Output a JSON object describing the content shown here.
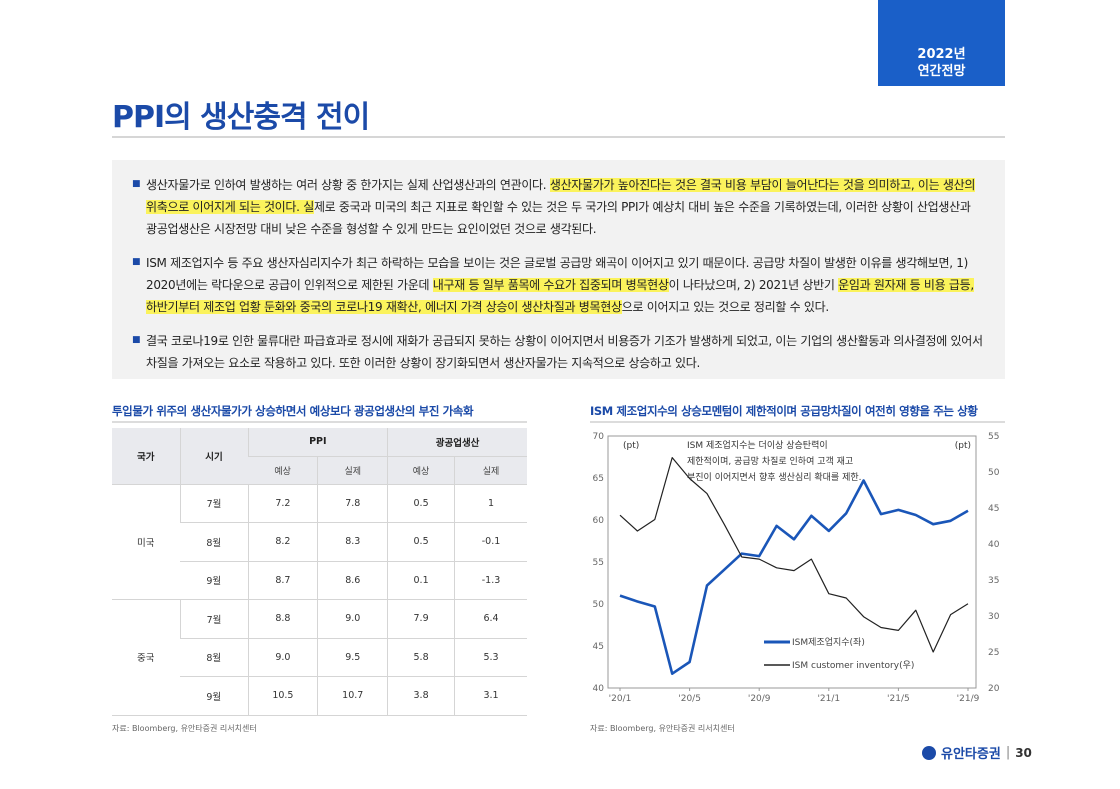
{
  "header": {
    "badge_line1": "2022년",
    "badge_line2": "연간전망",
    "title": "PPI의 생산충격 전이"
  },
  "summary": {
    "bullets": [
      {
        "segments": [
          {
            "text": "생산자물가로 인하여 발생하는 여러 상황 중 한가지는 실제 산업생산과의 연관이다. ",
            "hl": false
          },
          {
            "text": "생산자물가가 높아진다는 것은 결국 비용 부담이 늘어난다는 것을 의미하고, 이는 생산의 위축으로 이어지게 되는 것이다. 실",
            "hl": true
          },
          {
            "text": "제로 중국과 미국의 최근 지표로 확인할 수 있는 것은 두 국가의 PPI가 예상치 대비 높은 수준을 기록하였는데, 이러한 상황이 산업생산과 광공업생산은 시장전망 대비 낮은 수준을 형성할 수 있게 만드는 요인이었던 것으로 생각된다.",
            "hl": false
          }
        ]
      },
      {
        "segments": [
          {
            "text": "ISM 제조업지수 등 주요 생산자심리지수가 최근 하락하는 모습을 보이는 것은 글로벌 공급망 왜곡이 이어지고 있기 때문이다. 공급망 차질이 발생한 이유를 생각해보면, 1) 2020년에는 락다운으로 공급이 인위적으로 제한된 가운데 ",
            "hl": false
          },
          {
            "text": "내구재 등 일부 품목에 수요가 집중되며 병목현상",
            "hl": true
          },
          {
            "text": "이 나타났으며, 2) 2021년 상반기 ",
            "hl": false
          },
          {
            "text": "운임과 원자재 등 비용 급등, 하반기부터 제조업 업황 둔화와 중국의 코로나19 재확산, 에너지 가격 상승이 생산차질과 병목현상",
            "hl": true
          },
          {
            "text": "으로 이어지고 있는 것으로 정리할 수 있다.",
            "hl": false
          }
        ]
      },
      {
        "segments": [
          {
            "text": "결국 코로나19로 인한 물류대란 파급효과로 정시에 재화가 공급되지 못하는 상황이 이어지면서 비용증가 기조가 발생하게 되었고, 이는 기업의 생산활동과 의사결정에 있어서 차질을 가져오는 요소로 작용하고 있다. 또한 이러한 상황이 장기화되면서 생산자물가는 지속적으로 상승하고 있다.",
            "hl": false
          }
        ]
      }
    ]
  },
  "left_panel": {
    "title": "투입물가 위주의 생산자물가가 상승하면서 예상보다 광공업생산의 부진 가속화",
    "source": "자료: Bloomberg, 유안타증권 리서치센터",
    "table": {
      "h_country": "국가",
      "h_period": "시기",
      "h_ppi": "PPI",
      "h_ip": "광공업생산",
      "h_expected": "예상",
      "h_actual": "실제",
      "groups": [
        {
          "country": "미국",
          "rows": [
            {
              "period": "7월",
              "ppi_exp": "7.2",
              "ppi_act": "7.8",
              "ip_exp": "0.5",
              "ip_act": "1"
            },
            {
              "period": "8월",
              "ppi_exp": "8.2",
              "ppi_act": "8.3",
              "ip_exp": "0.5",
              "ip_act": "-0.1"
            },
            {
              "period": "9월",
              "ppi_exp": "8.7",
              "ppi_act": "8.6",
              "ip_exp": "0.1",
              "ip_act": "-1.3"
            }
          ]
        },
        {
          "country": "중국",
          "rows": [
            {
              "period": "7월",
              "ppi_exp": "8.8",
              "ppi_act": "9.0",
              "ip_exp": "7.9",
              "ip_act": "6.4"
            },
            {
              "period": "8월",
              "ppi_exp": "9.0",
              "ppi_act": "9.5",
              "ip_exp": "5.8",
              "ip_act": "5.3"
            },
            {
              "period": "9월",
              "ppi_exp": "10.5",
              "ppi_act": "10.7",
              "ip_exp": "3.8",
              "ip_act": "3.1"
            }
          ]
        }
      ],
      "colors": {
        "above": "#e03030",
        "below": "#2a7ad0"
      }
    }
  },
  "right_panel": {
    "title": "ISM 제조업지수의 상승모멘텀이 제한적이며 공급망차질이 여전히 영향을 주는 상황",
    "source": "자료: Bloomberg, 유안타증권 리서치센터"
  },
  "chart_data": {
    "type": "line",
    "left_unit": "(pt)",
    "right_unit": "(pt)",
    "annotation": [
      "ISM 제조업지수는 더이상 상승탄력이",
      "제한적이며, 공급망 차질로 인하여 고객 재고",
      "부진이 이어지면서 향후 생산심리 확대를 제한."
    ],
    "x_ticks": [
      "'20/1",
      "'20/5",
      "'20/9",
      "'21/1",
      "'21/5",
      "'21/9"
    ],
    "x_dates": [
      "2020-01",
      "2020-02",
      "2020-03",
      "2020-04",
      "2020-05",
      "2020-06",
      "2020-07",
      "2020-08",
      "2020-09",
      "2020-10",
      "2020-11",
      "2020-12",
      "2021-01",
      "2021-02",
      "2021-03",
      "2021-04",
      "2021-05",
      "2021-06",
      "2021-07",
      "2021-08",
      "2021-09"
    ],
    "y_left": {
      "min": 40,
      "max": 70,
      "ticks": [
        40,
        45,
        50,
        55,
        60,
        65,
        70
      ]
    },
    "y_right": {
      "min": 20,
      "max": 55,
      "ticks": [
        20,
        25,
        30,
        35,
        40,
        45,
        50,
        55
      ]
    },
    "series": [
      {
        "name": "ISM제조업지수(좌)",
        "axis": "left",
        "color": "#1a56b8",
        "width": 2.6,
        "values": [
          51.0,
          50.3,
          49.7,
          41.7,
          43.1,
          52.2,
          54.1,
          56.0,
          55.7,
          59.3,
          57.7,
          60.5,
          58.7,
          60.8,
          64.7,
          60.7,
          61.2,
          60.6,
          59.5,
          59.9,
          61.1
        ]
      },
      {
        "name": "ISM customer inventory(우)",
        "axis": "right",
        "color": "#222222",
        "width": 1.2,
        "values": [
          44.0,
          41.8,
          43.4,
          52.0,
          49.1,
          47.0,
          42.7,
          38.2,
          37.9,
          36.7,
          36.3,
          37.9,
          33.1,
          32.5,
          29.9,
          28.4,
          28.0,
          30.8,
          25.0,
          30.2,
          31.7
        ]
      }
    ]
  },
  "footer": {
    "brand": "유안타증권",
    "page": "30"
  }
}
